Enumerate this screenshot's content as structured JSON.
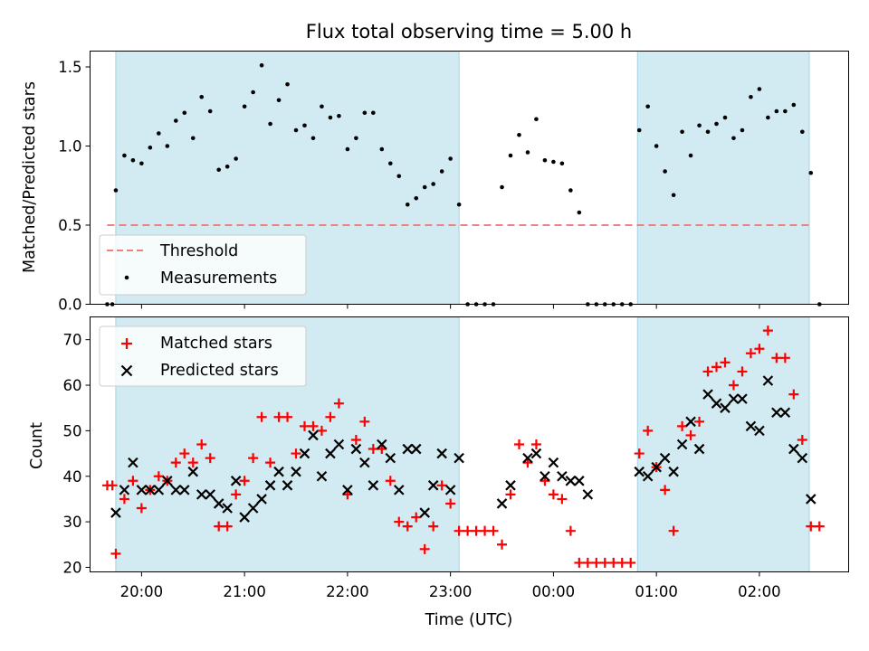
{
  "chart_data": [
    {
      "type": "scatter",
      "title": "Flux total observing time = 5.00 h",
      "ylabel": "Matched/Predicted stars",
      "xlabel": "",
      "ylim": [
        0,
        1.6
      ],
      "xlim": [
        "19:30",
        "02:52"
      ],
      "yticks": [
        "0.0",
        "0.5",
        "1.0",
        "1.5"
      ],
      "grid": false,
      "legend_position": "lower left",
      "shaded_intervals": [
        [
          "19:45",
          "23:05"
        ],
        [
          "00:49",
          "02:29"
        ]
      ],
      "shade_color": "#add8e6",
      "threshold": {
        "name": "Threshold",
        "value": 0.5,
        "x_range": [
          "19:40",
          "02:30"
        ],
        "color": "#f08080"
      },
      "series": [
        {
          "name": "Measurements",
          "color": "#000000",
          "points": [
            [
              "19:40",
              0.0
            ],
            [
              "19:43",
              0.0
            ],
            [
              "19:45",
              0.72
            ],
            [
              "19:50",
              0.94
            ],
            [
              "19:55",
              0.91
            ],
            [
              "20:00",
              0.89
            ],
            [
              "20:05",
              0.99
            ],
            [
              "20:10",
              1.08
            ],
            [
              "20:15",
              1.0
            ],
            [
              "20:20",
              1.16
            ],
            [
              "20:25",
              1.21
            ],
            [
              "20:30",
              1.05
            ],
            [
              "20:35",
              1.31
            ],
            [
              "20:40",
              1.22
            ],
            [
              "20:45",
              0.85
            ],
            [
              "20:50",
              0.87
            ],
            [
              "20:55",
              0.92
            ],
            [
              "21:00",
              1.25
            ],
            [
              "21:05",
              1.34
            ],
            [
              "21:10",
              1.51
            ],
            [
              "21:15",
              1.14
            ],
            [
              "21:20",
              1.29
            ],
            [
              "21:25",
              1.39
            ],
            [
              "21:30",
              1.1
            ],
            [
              "21:35",
              1.13
            ],
            [
              "21:40",
              1.05
            ],
            [
              "21:45",
              1.25
            ],
            [
              "21:50",
              1.18
            ],
            [
              "21:55",
              1.19
            ],
            [
              "22:00",
              0.98
            ],
            [
              "22:05",
              1.05
            ],
            [
              "22:10",
              1.21
            ],
            [
              "22:15",
              1.21
            ],
            [
              "22:20",
              0.98
            ],
            [
              "22:25",
              0.89
            ],
            [
              "22:30",
              0.81
            ],
            [
              "22:35",
              0.63
            ],
            [
              "22:40",
              0.67
            ],
            [
              "22:45",
              0.74
            ],
            [
              "22:50",
              0.76
            ],
            [
              "22:55",
              0.84
            ],
            [
              "23:00",
              0.92
            ],
            [
              "23:05",
              0.63
            ],
            [
              "23:10",
              0.0
            ],
            [
              "23:15",
              0.0
            ],
            [
              "23:20",
              0.0
            ],
            [
              "23:25",
              0.0
            ],
            [
              "23:30",
              0.74
            ],
            [
              "23:35",
              0.94
            ],
            [
              "23:40",
              1.07
            ],
            [
              "23:45",
              0.96
            ],
            [
              "23:50",
              1.17
            ],
            [
              "23:55",
              0.91
            ],
            [
              "00:00",
              0.9
            ],
            [
              "00:05",
              0.89
            ],
            [
              "00:10",
              0.72
            ],
            [
              "00:15",
              0.58
            ],
            [
              "00:20",
              0.0
            ],
            [
              "00:25",
              0.0
            ],
            [
              "00:30",
              0.0
            ],
            [
              "00:35",
              0.0
            ],
            [
              "00:40",
              0.0
            ],
            [
              "00:45",
              0.0
            ],
            [
              "00:50",
              1.1
            ],
            [
              "00:55",
              1.25
            ],
            [
              "01:00",
              1.0
            ],
            [
              "01:05",
              0.84
            ],
            [
              "01:10",
              0.69
            ],
            [
              "01:15",
              1.09
            ],
            [
              "01:20",
              0.94
            ],
            [
              "01:25",
              1.13
            ],
            [
              "01:30",
              1.09
            ],
            [
              "01:35",
              1.14
            ],
            [
              "01:40",
              1.18
            ],
            [
              "01:45",
              1.05
            ],
            [
              "01:50",
              1.1
            ],
            [
              "01:55",
              1.31
            ],
            [
              "02:00",
              1.36
            ],
            [
              "02:05",
              1.18
            ],
            [
              "02:10",
              1.22
            ],
            [
              "02:15",
              1.22
            ],
            [
              "02:20",
              1.26
            ],
            [
              "02:25",
              1.09
            ],
            [
              "02:30",
              0.83
            ],
            [
              "02:35",
              0.0
            ]
          ]
        }
      ]
    },
    {
      "type": "scatter",
      "title": "",
      "ylabel": "Count",
      "xlabel": "Time (UTC)",
      "ylim": [
        19,
        75
      ],
      "xlim": [
        "19:30",
        "02:52"
      ],
      "yticks": [
        "20",
        "30",
        "40",
        "50",
        "60",
        "70"
      ],
      "xticks": [
        "20:00",
        "21:00",
        "22:00",
        "23:00",
        "00:00",
        "01:00",
        "02:00"
      ],
      "grid": false,
      "legend_position": "upper left",
      "shaded_intervals": [
        [
          "19:45",
          "23:05"
        ],
        [
          "00:49",
          "02:29"
        ]
      ],
      "shade_color": "#add8e6",
      "series": [
        {
          "name": "Matched stars",
          "marker": "+",
          "color": "#ff0000",
          "points": [
            [
              "19:40",
              38
            ],
            [
              "19:43",
              38
            ],
            [
              "19:45",
              23
            ],
            [
              "19:50",
              35
            ],
            [
              "19:55",
              39
            ],
            [
              "20:00",
              33
            ],
            [
              "20:05",
              37
            ],
            [
              "20:10",
              40
            ],
            [
              "20:15",
              39
            ],
            [
              "20:20",
              43
            ],
            [
              "20:25",
              45
            ],
            [
              "20:30",
              43
            ],
            [
              "20:35",
              47
            ],
            [
              "20:40",
              44
            ],
            [
              "20:45",
              29
            ],
            [
              "20:50",
              29
            ],
            [
              "20:55",
              36
            ],
            [
              "21:00",
              39
            ],
            [
              "21:05",
              44
            ],
            [
              "21:10",
              53
            ],
            [
              "21:15",
              43
            ],
            [
              "21:20",
              53
            ],
            [
              "21:25",
              53
            ],
            [
              "21:30",
              45
            ],
            [
              "21:35",
              51
            ],
            [
              "21:40",
              51
            ],
            [
              "21:45",
              50
            ],
            [
              "21:50",
              53
            ],
            [
              "21:55",
              56
            ],
            [
              "22:00",
              36
            ],
            [
              "22:05",
              48
            ],
            [
              "22:10",
              52
            ],
            [
              "22:15",
              46
            ],
            [
              "22:20",
              46
            ],
            [
              "22:25",
              39
            ],
            [
              "22:30",
              30
            ],
            [
              "22:35",
              29
            ],
            [
              "22:40",
              31
            ],
            [
              "22:45",
              24
            ],
            [
              "22:50",
              29
            ],
            [
              "22:55",
              38
            ],
            [
              "23:00",
              34
            ],
            [
              "23:05",
              28
            ],
            [
              "23:10",
              28
            ],
            [
              "23:15",
              28
            ],
            [
              "23:20",
              28
            ],
            [
              "23:25",
              28
            ],
            [
              "23:30",
              25
            ],
            [
              "23:35",
              36
            ],
            [
              "23:40",
              47
            ],
            [
              "23:45",
              43
            ],
            [
              "23:50",
              47
            ],
            [
              "23:55",
              39
            ],
            [
              "00:00",
              36
            ],
            [
              "00:05",
              35
            ],
            [
              "00:10",
              28
            ],
            [
              "00:15",
              21
            ],
            [
              "00:20",
              21
            ],
            [
              "00:25",
              21
            ],
            [
              "00:30",
              21
            ],
            [
              "00:35",
              21
            ],
            [
              "00:40",
              21
            ],
            [
              "00:45",
              21
            ],
            [
              "00:50",
              45
            ],
            [
              "00:55",
              50
            ],
            [
              "01:00",
              42
            ],
            [
              "01:05",
              37
            ],
            [
              "01:10",
              28
            ],
            [
              "01:15",
              51
            ],
            [
              "01:20",
              49
            ],
            [
              "01:25",
              52
            ],
            [
              "01:30",
              63
            ],
            [
              "01:35",
              64
            ],
            [
              "01:40",
              65
            ],
            [
              "01:45",
              60
            ],
            [
              "01:50",
              63
            ],
            [
              "01:55",
              67
            ],
            [
              "02:00",
              68
            ],
            [
              "02:05",
              72
            ],
            [
              "02:10",
              66
            ],
            [
              "02:15",
              66
            ],
            [
              "02:20",
              58
            ],
            [
              "02:25",
              48
            ],
            [
              "02:30",
              29
            ],
            [
              "02:35",
              29
            ]
          ]
        },
        {
          "name": "Predicted stars",
          "marker": "x",
          "color": "#000000",
          "points": [
            [
              "19:45",
              32
            ],
            [
              "19:50",
              37
            ],
            [
              "19:55",
              43
            ],
            [
              "20:00",
              37
            ],
            [
              "20:05",
              37
            ],
            [
              "20:10",
              37
            ],
            [
              "20:15",
              39
            ],
            [
              "20:20",
              37
            ],
            [
              "20:25",
              37
            ],
            [
              "20:30",
              41
            ],
            [
              "20:35",
              36
            ],
            [
              "20:40",
              36
            ],
            [
              "20:45",
              34
            ],
            [
              "20:50",
              33
            ],
            [
              "20:55",
              39
            ],
            [
              "21:00",
              31
            ],
            [
              "21:05",
              33
            ],
            [
              "21:10",
              35
            ],
            [
              "21:15",
              38
            ],
            [
              "21:20",
              41
            ],
            [
              "21:25",
              38
            ],
            [
              "21:30",
              41
            ],
            [
              "21:35",
              45
            ],
            [
              "21:40",
              49
            ],
            [
              "21:45",
              40
            ],
            [
              "21:50",
              45
            ],
            [
              "21:55",
              47
            ],
            [
              "22:00",
              37
            ],
            [
              "22:05",
              46
            ],
            [
              "22:10",
              43
            ],
            [
              "22:15",
              38
            ],
            [
              "22:20",
              47
            ],
            [
              "22:25",
              44
            ],
            [
              "22:30",
              37
            ],
            [
              "22:35",
              46
            ],
            [
              "22:40",
              46
            ],
            [
              "22:45",
              32
            ],
            [
              "22:50",
              38
            ],
            [
              "22:55",
              45
            ],
            [
              "23:00",
              37
            ],
            [
              "23:05",
              44
            ],
            [
              "23:30",
              34
            ],
            [
              "23:35",
              38
            ],
            [
              "23:45",
              44
            ],
            [
              "23:50",
              45
            ],
            [
              "23:55",
              40
            ],
            [
              "00:00",
              43
            ],
            [
              "00:05",
              40
            ],
            [
              "00:10",
              39
            ],
            [
              "00:15",
              39
            ],
            [
              "00:20",
              36
            ],
            [
              "00:50",
              41
            ],
            [
              "00:55",
              40
            ],
            [
              "01:00",
              42
            ],
            [
              "01:05",
              44
            ],
            [
              "01:10",
              41
            ],
            [
              "01:15",
              47
            ],
            [
              "01:20",
              52
            ],
            [
              "01:25",
              46
            ],
            [
              "01:30",
              58
            ],
            [
              "01:35",
              56
            ],
            [
              "01:40",
              55
            ],
            [
              "01:45",
              57
            ],
            [
              "01:50",
              57
            ],
            [
              "01:55",
              51
            ],
            [
              "02:00",
              50
            ],
            [
              "02:05",
              61
            ],
            [
              "02:10",
              54
            ],
            [
              "02:15",
              54
            ],
            [
              "02:20",
              46
            ],
            [
              "02:25",
              44
            ],
            [
              "02:30",
              35
            ]
          ]
        }
      ]
    }
  ]
}
